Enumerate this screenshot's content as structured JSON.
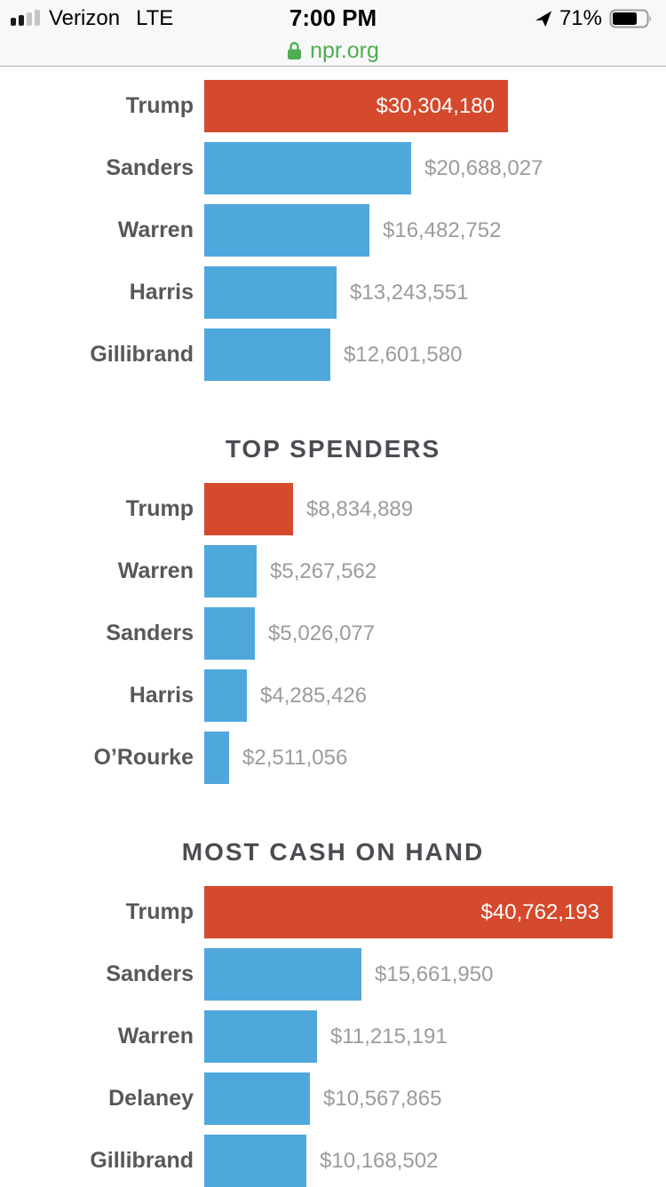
{
  "status_bar": {
    "carrier": "Verizon",
    "network": "LTE",
    "time": "7:00 PM",
    "battery_percent": "71%",
    "signal_bars_filled": 2,
    "signal_bars_total": 4
  },
  "url_bar": {
    "domain": "npr.org",
    "secure_color": "#4dae50"
  },
  "colors": {
    "trump_bar": "#d5492c",
    "democrat_bar": "#4fa8dc",
    "label_text": "#57585a",
    "value_text": "#9b9b9b",
    "value_on_bar": "#ffffff",
    "title_text": "#4b4d52"
  },
  "chart_data": [
    {
      "type": "bar",
      "title": "",
      "xlabel": "",
      "ylabel": "",
      "xmax": 40762193,
      "categories": [
        "Trump",
        "Sanders",
        "Warren",
        "Harris",
        "Gillibrand"
      ],
      "values": [
        30304180,
        20688027,
        16482752,
        13243551,
        12601580
      ],
      "rows": [
        {
          "label": "Trump",
          "value": 30304180,
          "value_label": "$30,304,180",
          "bar_color": "#d5492c",
          "value_inside": true
        },
        {
          "label": "Sanders",
          "value": 20688027,
          "value_label": "$20,688,027",
          "bar_color": "#4fa8dc",
          "value_inside": false
        },
        {
          "label": "Warren",
          "value": 16482752,
          "value_label": "$16,482,752",
          "bar_color": "#4fa8dc",
          "value_inside": false
        },
        {
          "label": "Harris",
          "value": 13243551,
          "value_label": "$13,243,551",
          "bar_color": "#4fa8dc",
          "value_inside": false
        },
        {
          "label": "Gillibrand",
          "value": 12601580,
          "value_label": "$12,601,580",
          "bar_color": "#4fa8dc",
          "value_inside": false
        }
      ]
    },
    {
      "type": "bar",
      "title": "TOP SPENDERS",
      "xlabel": "",
      "ylabel": "",
      "xmax": 40762193,
      "categories": [
        "Trump",
        "Warren",
        "Sanders",
        "Harris",
        "O’Rourke"
      ],
      "values": [
        8834889,
        5267562,
        5026077,
        4285426,
        2511056
      ],
      "rows": [
        {
          "label": "Trump",
          "value": 8834889,
          "value_label": "$8,834,889",
          "bar_color": "#d5492c",
          "value_inside": false
        },
        {
          "label": "Warren",
          "value": 5267562,
          "value_label": "$5,267,562",
          "bar_color": "#4fa8dc",
          "value_inside": false
        },
        {
          "label": "Sanders",
          "value": 5026077,
          "value_label": "$5,026,077",
          "bar_color": "#4fa8dc",
          "value_inside": false
        },
        {
          "label": "Harris",
          "value": 4285426,
          "value_label": "$4,285,426",
          "bar_color": "#4fa8dc",
          "value_inside": false
        },
        {
          "label": "O’Rourke",
          "value": 2511056,
          "value_label": "$2,511,056",
          "bar_color": "#4fa8dc",
          "value_inside": false
        }
      ]
    },
    {
      "type": "bar",
      "title": "MOST CASH ON HAND",
      "xlabel": "",
      "ylabel": "",
      "xmax": 40762193,
      "categories": [
        "Trump",
        "Sanders",
        "Warren",
        "Delaney",
        "Gillibrand"
      ],
      "values": [
        40762193,
        15661950,
        11215191,
        10567865,
        10168502
      ],
      "rows": [
        {
          "label": "Trump",
          "value": 40762193,
          "value_label": "$40,762,193",
          "bar_color": "#d5492c",
          "value_inside": true
        },
        {
          "label": "Sanders",
          "value": 15661950,
          "value_label": "$15,661,950",
          "bar_color": "#4fa8dc",
          "value_inside": false
        },
        {
          "label": "Warren",
          "value": 11215191,
          "value_label": "$11,215,191",
          "bar_color": "#4fa8dc",
          "value_inside": false
        },
        {
          "label": "Delaney",
          "value": 10567865,
          "value_label": "$10,567,865",
          "bar_color": "#4fa8dc",
          "value_inside": false
        },
        {
          "label": "Gillibrand",
          "value": 10168502,
          "value_label": "$10,168,502",
          "bar_color": "#4fa8dc",
          "value_inside": false
        }
      ]
    }
  ]
}
